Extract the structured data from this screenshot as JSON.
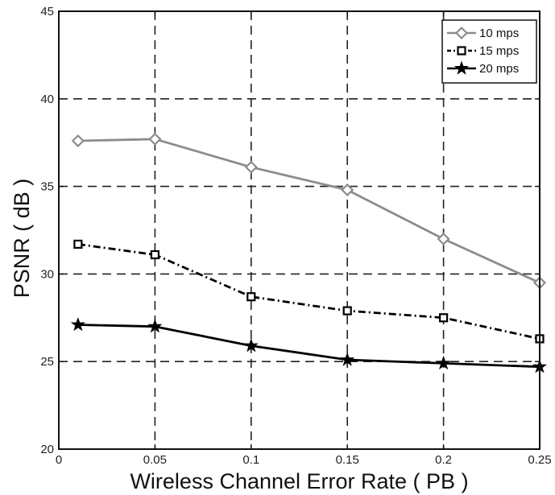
{
  "chart_data": {
    "type": "line",
    "title": "",
    "xlabel": "Wireless Channel Error Rate ( PB )",
    "ylabel": "PSNR ( dB )",
    "xlim": [
      0,
      0.25
    ],
    "ylim": [
      20,
      45
    ],
    "xticks": [
      0,
      0.05,
      0.1,
      0.15,
      0.2,
      0.25
    ],
    "xtick_labels": [
      "0",
      "0.05",
      "0.1",
      "0.15",
      "0.2",
      "0.25"
    ],
    "yticks": [
      20,
      25,
      30,
      35,
      40,
      45
    ],
    "ytick_labels": [
      "20",
      "25",
      "30",
      "35",
      "40",
      "45"
    ],
    "grid": true,
    "grid_style": "dashed",
    "legend_position": "top-right",
    "x": [
      0.01,
      0.05,
      0.1,
      0.15,
      0.2,
      0.25
    ],
    "series": [
      {
        "name": "10 mps",
        "values": [
          37.6,
          37.7,
          36.1,
          34.8,
          32.0,
          29.5
        ],
        "color": "#8c8c8c",
        "line_style": "solid",
        "marker": "diamond"
      },
      {
        "name": "15 mps",
        "values": [
          31.7,
          31.1,
          28.7,
          27.9,
          27.5,
          26.3
        ],
        "color": "#000000",
        "line_style": "dashdot",
        "marker": "square"
      },
      {
        "name": "20 mps",
        "values": [
          27.1,
          27.0,
          25.9,
          25.1,
          24.9,
          24.7
        ],
        "color": "#000000",
        "line_style": "solid",
        "marker": "star"
      }
    ]
  }
}
